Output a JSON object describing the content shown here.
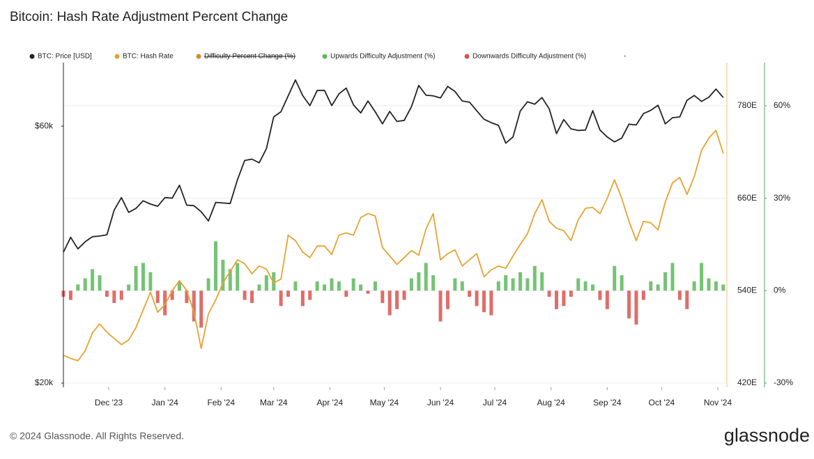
{
  "chart_data": {
    "type": "line",
    "title": "Bitcoin: Hash Rate Adjustment Percent Change",
    "x": [
      0,
      4,
      8,
      12,
      16,
      20,
      24,
      28,
      32,
      36,
      40,
      44,
      48,
      52,
      56,
      60,
      64,
      68,
      72,
      76,
      80,
      84,
      88,
      92,
      96,
      100,
      104,
      108,
      112,
      116,
      120,
      124,
      128,
      132,
      136,
      140,
      144,
      148,
      152,
      156,
      160,
      164,
      168,
      172,
      176,
      180,
      184,
      188,
      192,
      196,
      200,
      204,
      208,
      212,
      216,
      220,
      224,
      228,
      232,
      236,
      240,
      244,
      248,
      252,
      256,
      260,
      264,
      268,
      272,
      276,
      280,
      284,
      288,
      292,
      296,
      300,
      304,
      308,
      312,
      316,
      320,
      324,
      328,
      332,
      336,
      340,
      344,
      348,
      352,
      356,
      360,
      364
    ],
    "xlim": [
      0,
      366
    ],
    "xticks": [
      {
        "value": 25,
        "label": "Dec '23"
      },
      {
        "value": 56,
        "label": "Jan '24"
      },
      {
        "value": 87,
        "label": "Feb '24"
      },
      {
        "value": 116,
        "label": "Mar '24"
      },
      {
        "value": 147,
        "label": "Apr '24"
      },
      {
        "value": 177,
        "label": "May '24"
      },
      {
        "value": 208,
        "label": "Jun '24"
      },
      {
        "value": 238,
        "label": "Jul '24"
      },
      {
        "value": 269,
        "label": "Aug '24"
      },
      {
        "value": 300,
        "label": "Sep '24"
      },
      {
        "value": 330,
        "label": "Oct '24"
      },
      {
        "value": 361,
        "label": "Nov '24"
      }
    ],
    "ylim": [
      20000,
      78700
    ],
    "log_y": true,
    "yticks": [
      {
        "value": 20000,
        "label": "$20k"
      },
      {
        "value": 60000,
        "label": "$60k"
      }
    ],
    "y2lim": [
      420,
      836
    ],
    "y2ticks": [
      {
        "value": 420,
        "label": "420E"
      },
      {
        "value": 540,
        "label": "540E"
      },
      {
        "value": 660,
        "label": "660E"
      },
      {
        "value": 780,
        "label": "780E"
      }
    ],
    "y3lim": [
      -30,
      74
    ],
    "y3ticks": [
      {
        "value": -30,
        "label": "-30%"
      },
      {
        "value": 0,
        "label": "0%"
      },
      {
        "value": 30,
        "label": "30%"
      },
      {
        "value": 60,
        "label": "60%"
      }
    ],
    "grid": true,
    "series": [
      {
        "name": "BTC: Price [USD]",
        "color": "#222222",
        "type": "line",
        "axis": "y",
        "values": [
          35000,
          37300,
          35500,
          36600,
          37400,
          37500,
          37700,
          41900,
          44200,
          41500,
          42200,
          43600,
          43000,
          42600,
          44200,
          44100,
          46600,
          42800,
          42700,
          41600,
          40000,
          43300,
          43200,
          43100,
          47700,
          51800,
          52100,
          51300,
          54500,
          62400,
          63800,
          68300,
          73100,
          68400,
          65500,
          69900,
          69900,
          65500,
          68900,
          70600,
          65700,
          63500,
          66800,
          63800,
          60600,
          63900,
          61200,
          61500,
          65200,
          71400,
          68500,
          68300,
          67700,
          71100,
          69600,
          66800,
          66500,
          64100,
          61800,
          60900,
          60200,
          55800,
          57300,
          64000,
          66600,
          65900,
          67800,
          64600,
          58100,
          61700,
          59300,
          58900,
          59000,
          64100,
          59000,
          57300,
          56100,
          57000,
          60500,
          60300,
          63300,
          64200,
          65600,
          60600,
          62200,
          62400,
          67000,
          68400,
          66700,
          67900,
          70300,
          67800
        ]
      },
      {
        "name": "BTC: Hash Rate",
        "color": "#e8a230",
        "type": "line",
        "axis": "y2",
        "values": [
          456,
          452,
          449,
          462,
          485,
          497,
          486,
          478,
          470,
          476,
          492,
          515,
          538,
          512,
          522,
          540,
          553,
          540,
          512,
          465,
          510,
          528,
          550,
          565,
          580,
          575,
          562,
          572,
          568,
          550,
          555,
          612,
          605,
          590,
          583,
          598,
          598,
          587,
          612,
          615,
          612,
          635,
          640,
          637,
          596,
          585,
          574,
          583,
          592,
          586,
          620,
          640,
          580,
          588,
          593,
          572,
          580,
          588,
          558,
          567,
          572,
          569,
          585,
          600,
          614,
          640,
          658,
          630,
          621,
          618,
          605,
          632,
          647,
          648,
          640,
          660,
          684,
          660,
          630,
          605,
          630,
          628,
          619,
          655,
          680,
          687,
          665,
          688,
          722,
          738,
          748,
          718
        ]
      },
      {
        "name": "Difficulty Percent Change (%)",
        "color": "#d98a2b",
        "visible": false
      },
      {
        "name": "Upwards Difficulty Adjustment (%)",
        "color": "#5cb85c",
        "type": "bar",
        "axis": "y3",
        "values": [
          null,
          null,
          2,
          4,
          7,
          5,
          null,
          null,
          null,
          2,
          8,
          9,
          6,
          null,
          null,
          null,
          3,
          null,
          null,
          null,
          4,
          16,
          10,
          7,
          9,
          null,
          null,
          2,
          5,
          6,
          null,
          null,
          3,
          null,
          null,
          3,
          2,
          4,
          3,
          null,
          4,
          2,
          null,
          3,
          null,
          null,
          null,
          null,
          4,
          6,
          9,
          5,
          null,
          null,
          4,
          3,
          null,
          null,
          null,
          null,
          3,
          5,
          4,
          6,
          4,
          8,
          6,
          null,
          null,
          null,
          null,
          4,
          3,
          2,
          null,
          null,
          8,
          5,
          null,
          null,
          null,
          3,
          2,
          6,
          9,
          null,
          null,
          3,
          9,
          4,
          3,
          2
        ]
      },
      {
        "name": "Downwards Difficulty Adjustment (%)",
        "color": "#d9534f",
        "type": "bar",
        "axis": "y3",
        "values": [
          -2,
          -3,
          null,
          null,
          null,
          null,
          -2,
          -4,
          -3,
          null,
          null,
          null,
          null,
          -4,
          -8,
          -3,
          null,
          -4,
          -10,
          -12,
          null,
          null,
          null,
          null,
          null,
          -3,
          -4,
          null,
          null,
          null,
          -5,
          -2,
          null,
          -5,
          -3,
          null,
          null,
          null,
          null,
          -2,
          null,
          null,
          -1,
          null,
          -4,
          -8,
          -6,
          -3,
          null,
          null,
          null,
          null,
          -10,
          -6,
          null,
          null,
          -2,
          -5,
          -7,
          -8,
          null,
          null,
          null,
          null,
          null,
          null,
          null,
          -2,
          -6,
          -5,
          -2,
          null,
          null,
          null,
          -3,
          -6,
          null,
          null,
          -9,
          -11,
          -3,
          null,
          null,
          null,
          null,
          -3,
          -6,
          null,
          null,
          null,
          null,
          null
        ]
      }
    ],
    "legend_note": "-",
    "copyright": "© 2024 Glassnode. All Rights Reserved.",
    "brand": "glassnode"
  }
}
